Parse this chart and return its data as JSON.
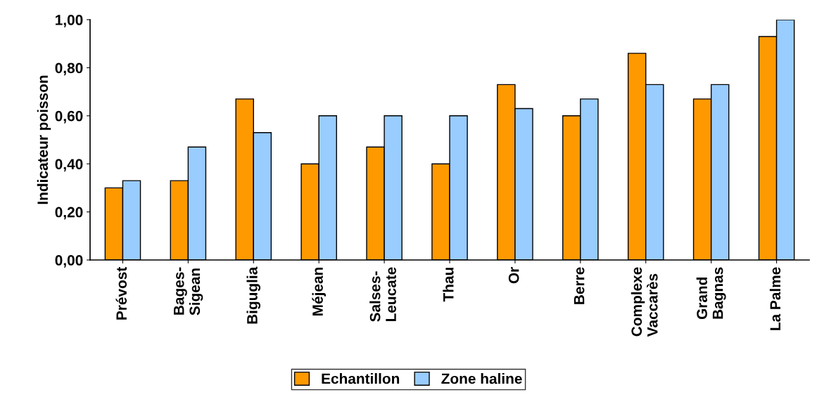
{
  "chart_data": {
    "type": "bar",
    "ylabel": "Indicateur poisson",
    "categories": [
      "Prévost",
      "Bages-\nSigean",
      "Biguglia",
      "Méjean",
      "Salses-\nLeucate",
      "Thau",
      "Or",
      "Berre",
      "Complexe\nVaccarès",
      "Grand\nBagnas",
      "La Palme"
    ],
    "series": [
      {
        "name": "Echantillon",
        "color": "#ff9900",
        "values": [
          0.3,
          0.33,
          0.67,
          0.4,
          0.47,
          0.4,
          0.73,
          0.6,
          0.86,
          0.67,
          0.93
        ]
      },
      {
        "name": "Zone haline",
        "color": "#99ccff",
        "values": [
          0.33,
          0.47,
          0.53,
          0.6,
          0.6,
          0.6,
          0.63,
          0.67,
          0.73,
          0.73,
          1.0
        ]
      }
    ],
    "ylim": [
      0,
      1
    ],
    "yticks": [
      {
        "value": 0,
        "label": "0,00"
      },
      {
        "value": 0.2,
        "label": "0,20"
      },
      {
        "value": 0.4,
        "label": "0,40"
      },
      {
        "value": 0.6,
        "label": "0,60"
      },
      {
        "value": 0.8,
        "label": "0,80"
      },
      {
        "value": 1,
        "label": "1,00"
      }
    ],
    "grid": false,
    "legend": "bottom"
  }
}
